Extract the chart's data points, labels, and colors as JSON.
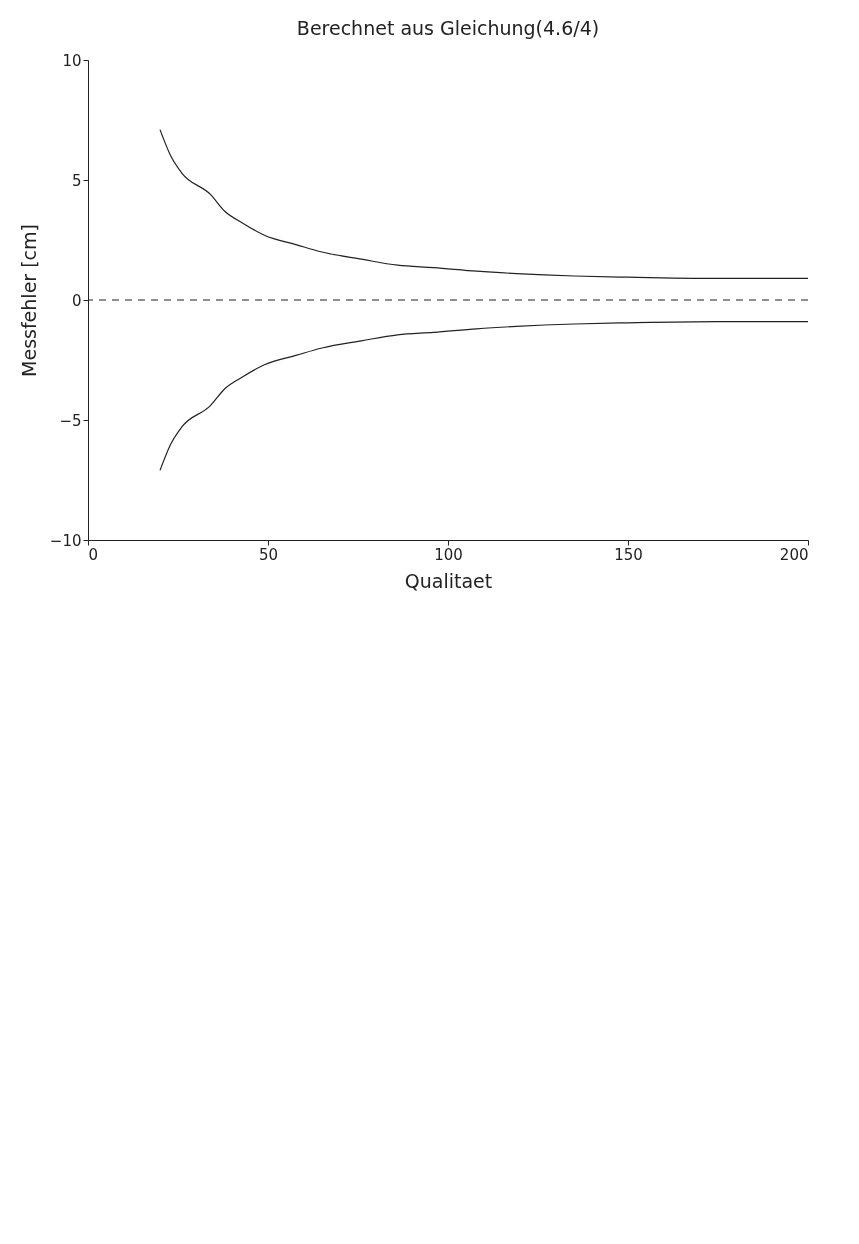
{
  "chart_data": {
    "type": "line",
    "title": "Berechnet aus Gleichung(4.6/4)",
    "xlabel": "Qualitaet",
    "ylabel": "Messfehler [cm]",
    "xlim": [
      0,
      200
    ],
    "xticks": [
      0,
      50,
      100,
      150,
      200
    ],
    "ylim": [
      -10,
      10
    ],
    "yticks": [
      -10,
      -5,
      0,
      5,
      10
    ],
    "grid": false,
    "legend": false,
    "line_style": "solid",
    "series": [
      {
        "color": "#222222",
        "x": [
          20,
          23,
          26,
          34,
          38,
          43,
          49,
          58,
          65,
          76,
          86,
          96,
          108,
          119,
          135,
          150,
          175,
          200
        ],
        "values": [
          7.1,
          6.0,
          5.3,
          4.4,
          3.7,
          3.2,
          2.7,
          2.3,
          2.0,
          1.7,
          1.45,
          1.35,
          1.2,
          1.1,
          1.0,
          0.95,
          0.9,
          0.9
        ]
      },
      {
        "color": "#222222",
        "x": [
          20,
          23,
          26,
          34,
          38,
          43,
          49,
          58,
          65,
          76,
          86,
          96,
          108,
          119,
          135,
          150,
          175,
          200
        ],
        "values": [
          -7.1,
          -6.0,
          -5.3,
          -4.4,
          -3.7,
          -3.2,
          -2.7,
          -2.3,
          -2.0,
          -1.7,
          -1.45,
          -1.35,
          -1.2,
          -1.1,
          -1.0,
          -0.95,
          -0.9,
          -0.9
        ]
      }
    ],
    "ref_lines": [
      {
        "axis": "y",
        "value": 0,
        "color": "#222222",
        "line_style": "dashed"
      }
    ]
  }
}
